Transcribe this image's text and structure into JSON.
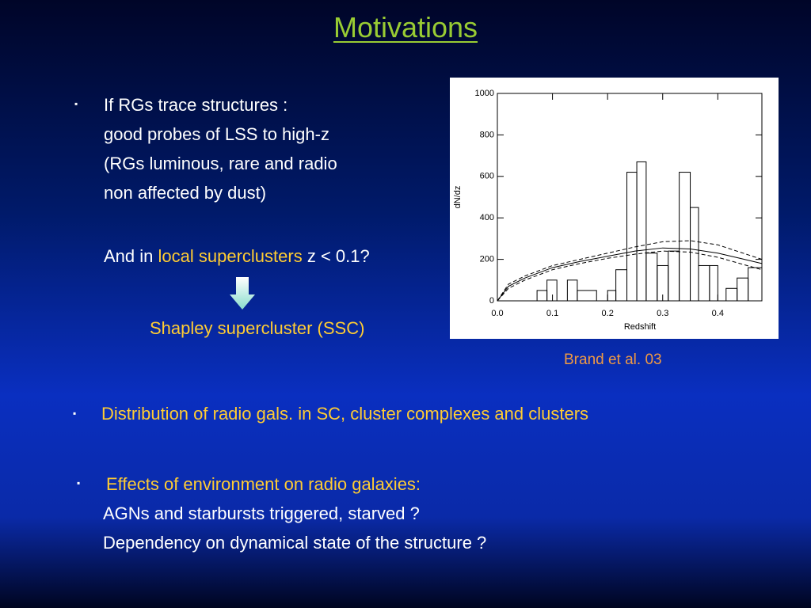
{
  "title": "Motivations",
  "bullet1": {
    "lines": [
      "If RGs trace structures :",
      "good probes of LSS to high-z",
      "(RGs luminous, rare and radio",
      "non affected by dust)"
    ],
    "question": [
      "And in",
      "local superclusters",
      "z < 0.1?"
    ],
    "answer": "Shapley supercluster (SSC)"
  },
  "citation": "Brand et al. 03",
  "bullet2": "Distribution of radio gals. in SC, cluster complexes and clusters",
  "bullet3": {
    "head": "Effects of environment on radio galaxies:",
    "lines": [
      "AGNs and starbursts triggered, starved ?",
      "Dependency on dynamical state of the structure ?"
    ]
  },
  "chart_data": {
    "type": "histogram",
    "xlabel": "Redshift",
    "ylabel": "dN/dz",
    "bins": [
      0,
      0.072,
      0.09,
      0.108,
      0.127,
      0.145,
      0.18,
      0.2,
      0.215,
      0.235,
      0.253,
      0.27,
      0.29,
      0.31,
      0.33,
      0.35,
      0.365,
      0.385,
      0.4,
      0.415,
      0.435,
      0.455,
      0.48
    ],
    "values": [
      0,
      50,
      100,
      0,
      100,
      50,
      0,
      50,
      150,
      620,
      670,
      230,
      170,
      240,
      620,
      450,
      170,
      170,
      0,
      60,
      110,
      160
    ],
    "color": "#000000",
    "lines": [
      {
        "style": "solid",
        "x": [
          0,
          0.02,
          0.05,
          0.1,
          0.15,
          0.2,
          0.25,
          0.3,
          0.35,
          0.4,
          0.44,
          0.48
        ],
        "values": [
          0,
          70,
          110,
          160,
          190,
          215,
          240,
          255,
          250,
          230,
          205,
          180
        ]
      },
      {
        "style": "dashed",
        "x": [
          0,
          0.02,
          0.05,
          0.1,
          0.15,
          0.2,
          0.25,
          0.3,
          0.35,
          0.4,
          0.44,
          0.48
        ],
        "values": [
          0,
          80,
          120,
          170,
          200,
          230,
          260,
          285,
          290,
          270,
          235,
          200
        ]
      },
      {
        "style": "dashed",
        "x": [
          0,
          0.02,
          0.05,
          0.1,
          0.15,
          0.2,
          0.25,
          0.3,
          0.35,
          0.4,
          0.44,
          0.48
        ],
        "values": [
          0,
          60,
          100,
          150,
          180,
          205,
          225,
          240,
          235,
          210,
          180,
          150
        ]
      }
    ],
    "xlim": [
      0,
      0.48
    ],
    "ylim": [
      0,
      1000
    ],
    "xticks": [
      {
        "value": 0,
        "label": "0.0"
      },
      0.1,
      0.2,
      0.3,
      0.4
    ],
    "yticks": [
      0,
      200,
      400,
      600,
      800,
      1000
    ]
  }
}
